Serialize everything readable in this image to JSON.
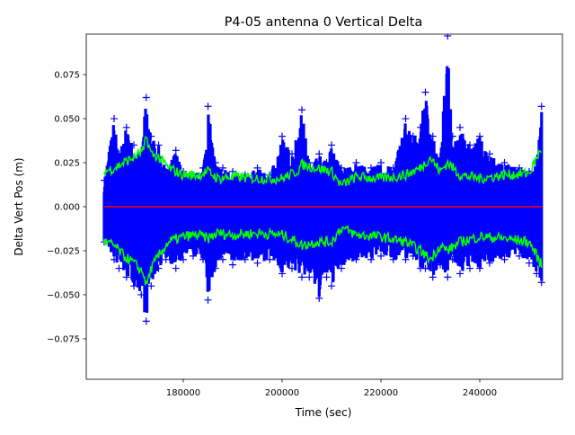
{
  "chart_data": {
    "type": "scatter",
    "title": "P4-05 antenna 0 Vertical Delta",
    "xlabel": "Time (sec)",
    "ylabel": "Delta Vert Pos (m)",
    "xlim": [
      160364,
      256727
    ],
    "ylim": [
      -0.098,
      0.098
    ],
    "grid": false,
    "xticks": [
      180000,
      200000,
      220000,
      240000
    ],
    "xtick_labels": [
      "180000",
      "200000",
      "220000",
      "240000"
    ],
    "yticks": [
      -0.075,
      -0.05,
      -0.025,
      0,
      0.025,
      0.05,
      0.075
    ],
    "ytick_labels": [
      "−0.075",
      "−0.050",
      "−0.025",
      "0.000",
      "0.025",
      "0.050",
      "0.075"
    ],
    "series": [
      {
        "name": "vertical delta samples (envelope)",
        "marker": "+",
        "color": "#0000ff",
        "time": [
          164000,
          166000,
          167000,
          168500,
          170000,
          171500,
          172500,
          173500,
          175000,
          176500,
          178500,
          180000,
          182000,
          184000,
          185000,
          186500,
          188000,
          190000,
          192500,
          195000,
          197500,
          200000,
          202000,
          204000,
          205500,
          207500,
          209000,
          210000,
          212000,
          215000,
          218000,
          220000,
          222500,
          225000,
          226500,
          228000,
          229000,
          230500,
          232000,
          233500,
          234500,
          236000,
          238000,
          240000,
          242000,
          245000,
          248000,
          250000,
          251500,
          252500
        ],
        "max": [
          0.015,
          0.05,
          0.03,
          0.045,
          0.035,
          0.03,
          0.062,
          0.04,
          0.035,
          0.02,
          0.032,
          0.02,
          0.018,
          0.022,
          0.057,
          0.025,
          0.022,
          0.02,
          0.018,
          0.022,
          0.018,
          0.04,
          0.03,
          0.055,
          0.025,
          0.03,
          0.025,
          0.035,
          0.022,
          0.025,
          0.022,
          0.025,
          0.022,
          0.05,
          0.04,
          0.045,
          0.065,
          0.04,
          0.025,
          0.097,
          0.04,
          0.045,
          0.035,
          0.04,
          0.03,
          0.025,
          0.022,
          0.02,
          0.025,
          0.057
        ],
        "min": [
          -0.02,
          -0.03,
          -0.035,
          -0.04,
          -0.045,
          -0.05,
          -0.065,
          -0.045,
          -0.035,
          -0.03,
          -0.035,
          -0.03,
          -0.028,
          -0.03,
          -0.053,
          -0.035,
          -0.03,
          -0.033,
          -0.03,
          -0.032,
          -0.03,
          -0.038,
          -0.035,
          -0.04,
          -0.04,
          -0.052,
          -0.04,
          -0.045,
          -0.035,
          -0.03,
          -0.03,
          -0.028,
          -0.03,
          -0.03,
          -0.028,
          -0.035,
          -0.035,
          -0.04,
          -0.033,
          -0.04,
          -0.03,
          -0.038,
          -0.035,
          -0.035,
          -0.032,
          -0.03,
          -0.028,
          -0.032,
          -0.038,
          -0.043
        ]
      },
      {
        "name": "upper sigma",
        "color": "#00ff00",
        "time": [
          164000,
          166000,
          168000,
          170000,
          172000,
          172500,
          173500,
          175000,
          177000,
          180000,
          183000,
          185000,
          187000,
          190000,
          195000,
          200000,
          203000,
          204000,
          207000,
          210000,
          212000,
          215000,
          220000,
          225000,
          228000,
          230000,
          232000,
          233500,
          236000,
          240000,
          245000,
          250000,
          252500
        ],
        "values": [
          0.02,
          0.022,
          0.025,
          0.028,
          0.032,
          0.04,
          0.03,
          0.028,
          0.022,
          0.018,
          0.018,
          0.02,
          0.016,
          0.017,
          0.016,
          0.016,
          0.02,
          0.024,
          0.022,
          0.02,
          0.012,
          0.017,
          0.016,
          0.018,
          0.022,
          0.028,
          0.02,
          0.025,
          0.018,
          0.016,
          0.018,
          0.019,
          0.033
        ]
      },
      {
        "name": "lower sigma",
        "color": "#00ff00",
        "time": [
          164000,
          166000,
          168000,
          170000,
          172000,
          172500,
          173500,
          175000,
          177000,
          180000,
          183000,
          185000,
          187000,
          190000,
          195000,
          200000,
          203000,
          204000,
          207000,
          210000,
          212000,
          215000,
          220000,
          225000,
          228000,
          230000,
          232000,
          233500,
          236000,
          240000,
          245000,
          250000,
          252500
        ],
        "values": [
          -0.02,
          -0.022,
          -0.028,
          -0.032,
          -0.038,
          -0.045,
          -0.035,
          -0.028,
          -0.02,
          -0.017,
          -0.016,
          -0.018,
          -0.015,
          -0.016,
          -0.015,
          -0.016,
          -0.02,
          -0.022,
          -0.02,
          -0.02,
          -0.012,
          -0.016,
          -0.017,
          -0.02,
          -0.025,
          -0.03,
          -0.022,
          -0.025,
          -0.02,
          -0.017,
          -0.018,
          -0.02,
          -0.033
        ]
      },
      {
        "name": "zero line",
        "color": "#ff0000",
        "time": [
          164000,
          252600
        ],
        "values": [
          0,
          0
        ]
      }
    ]
  }
}
